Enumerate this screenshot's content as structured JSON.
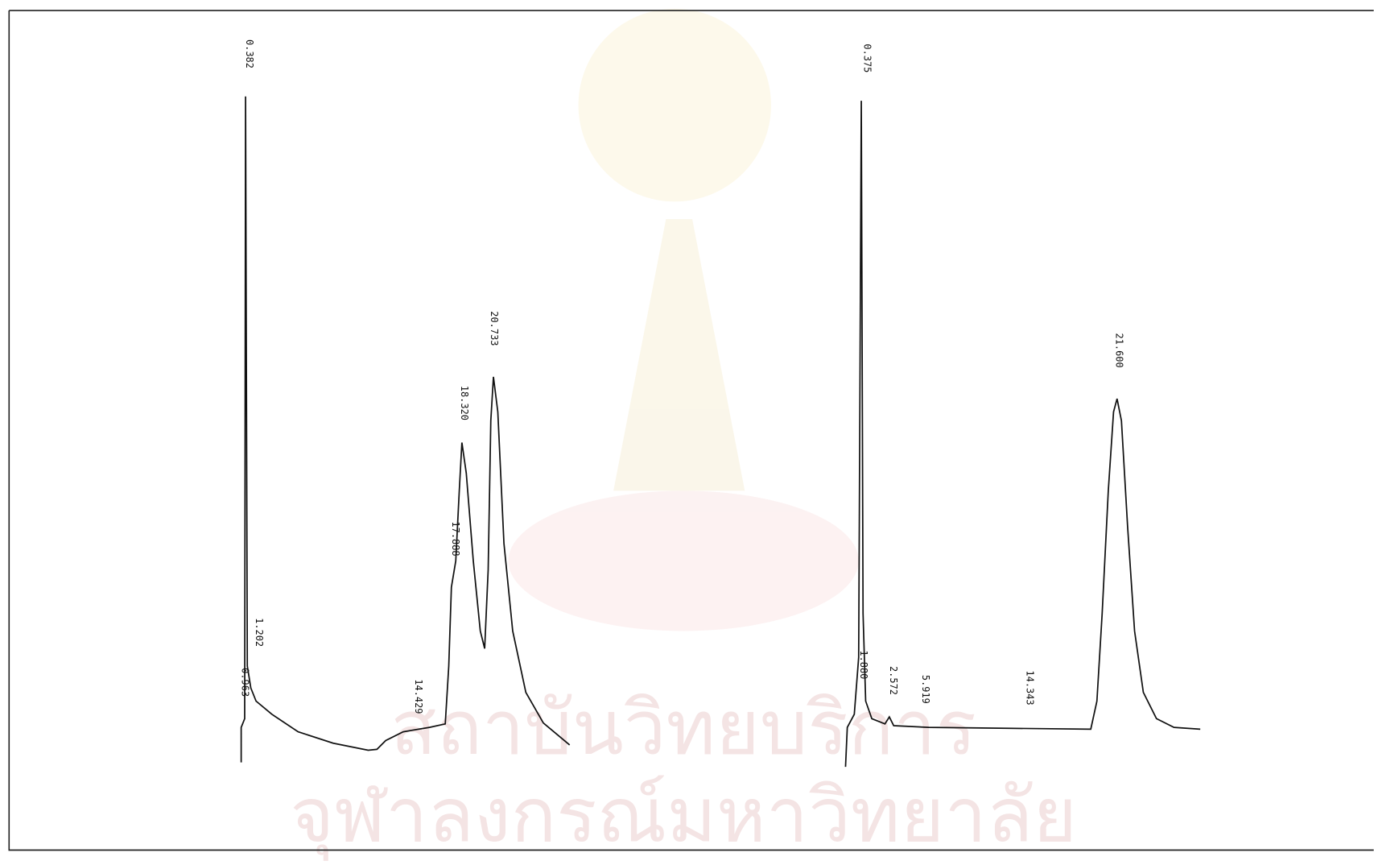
{
  "chromatograms": [
    {
      "peaks": [
        "0.382",
        "1.202",
        "0.963",
        "14.429",
        "17.888",
        "18.320",
        "20.733"
      ]
    },
    {
      "peaks": [
        "0.375",
        "1.880",
        "2.572",
        "5.919",
        "14.343",
        "21.600"
      ]
    }
  ],
  "watermark": [
    "สถาบันวิทยบริการ",
    "จุฬาลงกรณ์มหาวิทยาลัย"
  ]
}
